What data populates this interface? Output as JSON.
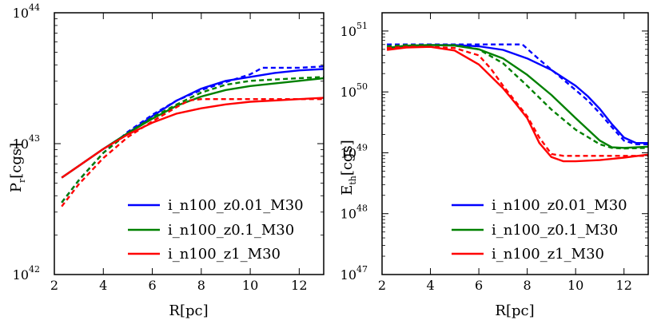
{
  "chart_data": [
    {
      "type": "line",
      "panel": "left",
      "xlabel": "R[pc]",
      "ylabel": "P_r[cgs]",
      "ylabel_main": "P",
      "ylabel_sub": "r",
      "ylabel_unit": "[cgs]",
      "yscale": "log",
      "xlim": [
        2,
        13
      ],
      "ylim_exp": [
        42,
        44
      ],
      "xticks": [
        2,
        4,
        6,
        8,
        10,
        12
      ],
      "xtick_labels": [
        "2",
        "4",
        "6",
        "8",
        "10",
        "12"
      ],
      "yticks_exp": [
        42,
        43,
        44
      ],
      "ytick_labels": [
        "10",
        "10",
        "10"
      ],
      "ytick_sups": [
        "42",
        "43",
        "44"
      ],
      "legend_position": "lower-right",
      "series": [
        {
          "name": "i_n100_z0.01_M30",
          "color": "#0000ff",
          "solid": {
            "x": [
              2.3,
              3,
              4,
              5,
              6,
              7,
              8,
              9,
              10,
              11,
              12,
              13
            ],
            "y_log": [
              42.74,
              42.83,
              42.96,
              43.08,
              43.21,
              43.33,
              43.42,
              43.48,
              43.51,
              43.54,
              43.56,
              43.57
            ]
          },
          "dashed": {
            "x": [
              2.3,
              3,
              4,
              5,
              6,
              7,
              8,
              9,
              10,
              10.5,
              11,
              12,
              13
            ],
            "y_log": [
              42.55,
              42.72,
              42.93,
              43.09,
              43.22,
              43.33,
              43.41,
              43.47,
              43.53,
              43.58,
              43.58,
              43.58,
              43.59
            ]
          }
        },
        {
          "name": "i_n100_z0.1_M30",
          "color": "#008000",
          "solid": {
            "x": [
              2.3,
              3,
              4,
              5,
              6,
              7,
              8,
              9,
              10,
              11,
              12,
              13
            ],
            "y_log": [
              42.74,
              42.83,
              42.96,
              43.08,
              43.19,
              43.29,
              43.36,
              43.41,
              43.44,
              43.46,
              43.48,
              43.5
            ]
          },
          "dashed": {
            "x": [
              2.3,
              3,
              4,
              5,
              6,
              7,
              8,
              9,
              10,
              11,
              12,
              13
            ],
            "y_log": [
              42.55,
              42.72,
              42.93,
              43.08,
              43.2,
              43.3,
              43.39,
              43.45,
              43.48,
              43.49,
              43.5,
              43.51
            ]
          }
        },
        {
          "name": "i_n100_z1_M30",
          "color": "#ff0000",
          "solid": {
            "x": [
              2.3,
              3,
              4,
              5,
              6,
              7,
              8,
              9,
              10,
              11,
              12,
              13
            ],
            "y_log": [
              42.74,
              42.83,
              42.96,
              43.07,
              43.16,
              43.23,
              43.27,
              43.3,
              43.32,
              43.33,
              43.34,
              43.35
            ]
          },
          "dashed": {
            "x": [
              2.3,
              3,
              4,
              5,
              6,
              7,
              7.5,
              8,
              9,
              10,
              11,
              12,
              13
            ],
            "y_log": [
              42.52,
              42.69,
              42.89,
              43.05,
              43.17,
              43.28,
              43.33,
              43.34,
              43.34,
              43.34,
              43.34,
              43.34,
              43.34
            ]
          }
        }
      ]
    },
    {
      "type": "line",
      "panel": "right",
      "xlabel": "R[pc]",
      "ylabel": "E_th[cgs]",
      "ylabel_main": "E",
      "ylabel_sub": "th",
      "ylabel_unit": "[cgs]",
      "yscale": "log",
      "xlim": [
        2,
        13
      ],
      "ylim_exp": [
        47,
        51.3
      ],
      "xticks": [
        2,
        4,
        6,
        8,
        10,
        12
      ],
      "xtick_labels": [
        "2",
        "4",
        "6",
        "8",
        "10",
        "12"
      ],
      "yticks_exp": [
        47,
        48,
        49,
        50,
        51
      ],
      "ytick_labels": [
        "10",
        "10",
        "10",
        "10",
        "10"
      ],
      "ytick_sups": [
        "47",
        "48",
        "49",
        "50",
        "51"
      ],
      "legend_position": "lower-right",
      "series": [
        {
          "name": "i_n100_z0.01_M30",
          "color": "#0000ff",
          "solid": {
            "x": [
              2.2,
              3,
              4,
              5,
              6,
              7,
              8,
              9,
              10,
              10.5,
              11,
              11.5,
              12,
              12.5,
              13
            ],
            "y_log": [
              50.72,
              50.76,
              50.77,
              50.77,
              50.75,
              50.69,
              50.55,
              50.36,
              50.1,
              49.93,
              49.72,
              49.47,
              49.25,
              49.16,
              49.16
            ]
          },
          "dashed": {
            "x": [
              2.2,
              3,
              4,
              5,
              6,
              7,
              7.8,
              8.5,
              9.5,
              10.5,
              11,
              11.5,
              12,
              12.5,
              13
            ],
            "y_log": [
              50.78,
              50.78,
              50.78,
              50.78,
              50.78,
              50.78,
              50.78,
              50.53,
              50.2,
              49.86,
              49.65,
              49.42,
              49.2,
              49.14,
              49.14
            ]
          }
        },
        {
          "name": "i_n100_z0.1_M30",
          "color": "#008000",
          "solid": {
            "x": [
              2.2,
              3,
              4,
              5,
              6,
              7,
              8,
              9,
              10,
              11,
              11.5,
              12,
              13
            ],
            "y_log": [
              50.72,
              50.76,
              50.77,
              50.76,
              50.7,
              50.55,
              50.28,
              49.95,
              49.57,
              49.2,
              49.09,
              49.08,
              49.1
            ]
          },
          "dashed": {
            "x": [
              2.2,
              3,
              4,
              5,
              6,
              7,
              8,
              9,
              10,
              11,
              11.5,
              12,
              13
            ],
            "y_log": [
              50.75,
              50.77,
              50.77,
              50.77,
              50.7,
              50.47,
              50.1,
              49.71,
              49.38,
              49.14,
              49.08,
              49.07,
              49.08
            ]
          }
        },
        {
          "name": "i_n100_z1_M30",
          "color": "#ff0000",
          "solid": {
            "x": [
              2.2,
              3,
              4,
              5,
              6,
              7,
              7.5,
              8,
              8.5,
              9,
              9.5,
              10,
              11,
              12,
              13
            ],
            "y_log": [
              50.69,
              50.73,
              50.74,
              50.68,
              50.45,
              50.06,
              49.82,
              49.57,
              49.16,
              48.93,
              48.86,
              48.86,
              48.88,
              48.92,
              48.97
            ]
          },
          "dashed": {
            "x": [
              2.2,
              3,
              4,
              5,
              6,
              6.5,
              7,
              8,
              8.5,
              9,
              9.5,
              10,
              11,
              12,
              13
            ],
            "y_log": [
              50.72,
              50.74,
              50.74,
              50.72,
              50.6,
              50.38,
              50.1,
              49.6,
              49.25,
              48.98,
              48.95,
              48.95,
              48.95,
              48.95,
              48.95
            ]
          }
        }
      ]
    }
  ]
}
